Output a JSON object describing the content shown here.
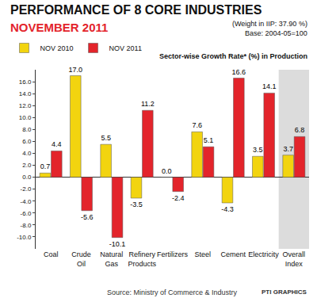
{
  "chart_data": {
    "type": "bar",
    "title": "PERFORMANCE OF 8 CORE INDUSTRIES",
    "subtitle": "NOVEMBER 2011",
    "annotations": [
      "(Weight in IIP: 37.90 %)",
      "Base: 2004-05=100",
      "Sector-wise Growth Rate* (%) in Production",
      "Source: Ministry of Commerce & Industry",
      "PTI GRAPHICS"
    ],
    "categories": [
      "Coal",
      "Crude Oil",
      "Natural Gas",
      "Refinery Products",
      "Fertilizers",
      "Steel",
      "Cement",
      "Electricity",
      "Overall Index"
    ],
    "series": [
      {
        "name": "NOV 2010",
        "color": "#f2d40f",
        "values": [
          0.7,
          17.0,
          5.5,
          -3.5,
          0.0,
          7.6,
          -4.3,
          3.5,
          3.7
        ],
        "value_labels": [
          "0.7",
          "17.0",
          "5.5",
          "-3.5",
          "0.0",
          "7.6",
          "-4.3",
          "3.5",
          "3.7"
        ]
      },
      {
        "name": "NOV 2011",
        "color": "#e3242b",
        "values": [
          4.4,
          -5.6,
          -10.1,
          11.2,
          -2.4,
          5.1,
          16.6,
          14.1,
          6.8
        ],
        "value_labels": [
          "4.4",
          "-5.6",
          "-10.1",
          "11.2",
          "-2.4",
          "5.1",
          "16.6",
          "14.1",
          "6.8"
        ]
      }
    ],
    "ylim": [
      -12,
      18
    ],
    "yticks": [
      {
        "value": -10,
        "label": "-10.0"
      },
      {
        "value": -8,
        "label": "-8.0"
      },
      {
        "value": -6,
        "label": "-6.0"
      },
      {
        "value": -4,
        "label": "-4.0"
      },
      {
        "value": -2,
        "label": "-2.0"
      },
      {
        "value": 0,
        "label": "0.0"
      },
      {
        "value": 2,
        "label": "2.0"
      },
      {
        "value": 4,
        "label": "4.0"
      },
      {
        "value": 6,
        "label": "6.0"
      },
      {
        "value": 8,
        "label": "8.0"
      },
      {
        "value": 10,
        "label": "10.0"
      },
      {
        "value": 12,
        "label": "12.0"
      },
      {
        "value": 14,
        "label": "14.0"
      },
      {
        "value": 16,
        "label": "16.0"
      }
    ],
    "grid": false,
    "legend": "top-left",
    "data_labels": true
  }
}
